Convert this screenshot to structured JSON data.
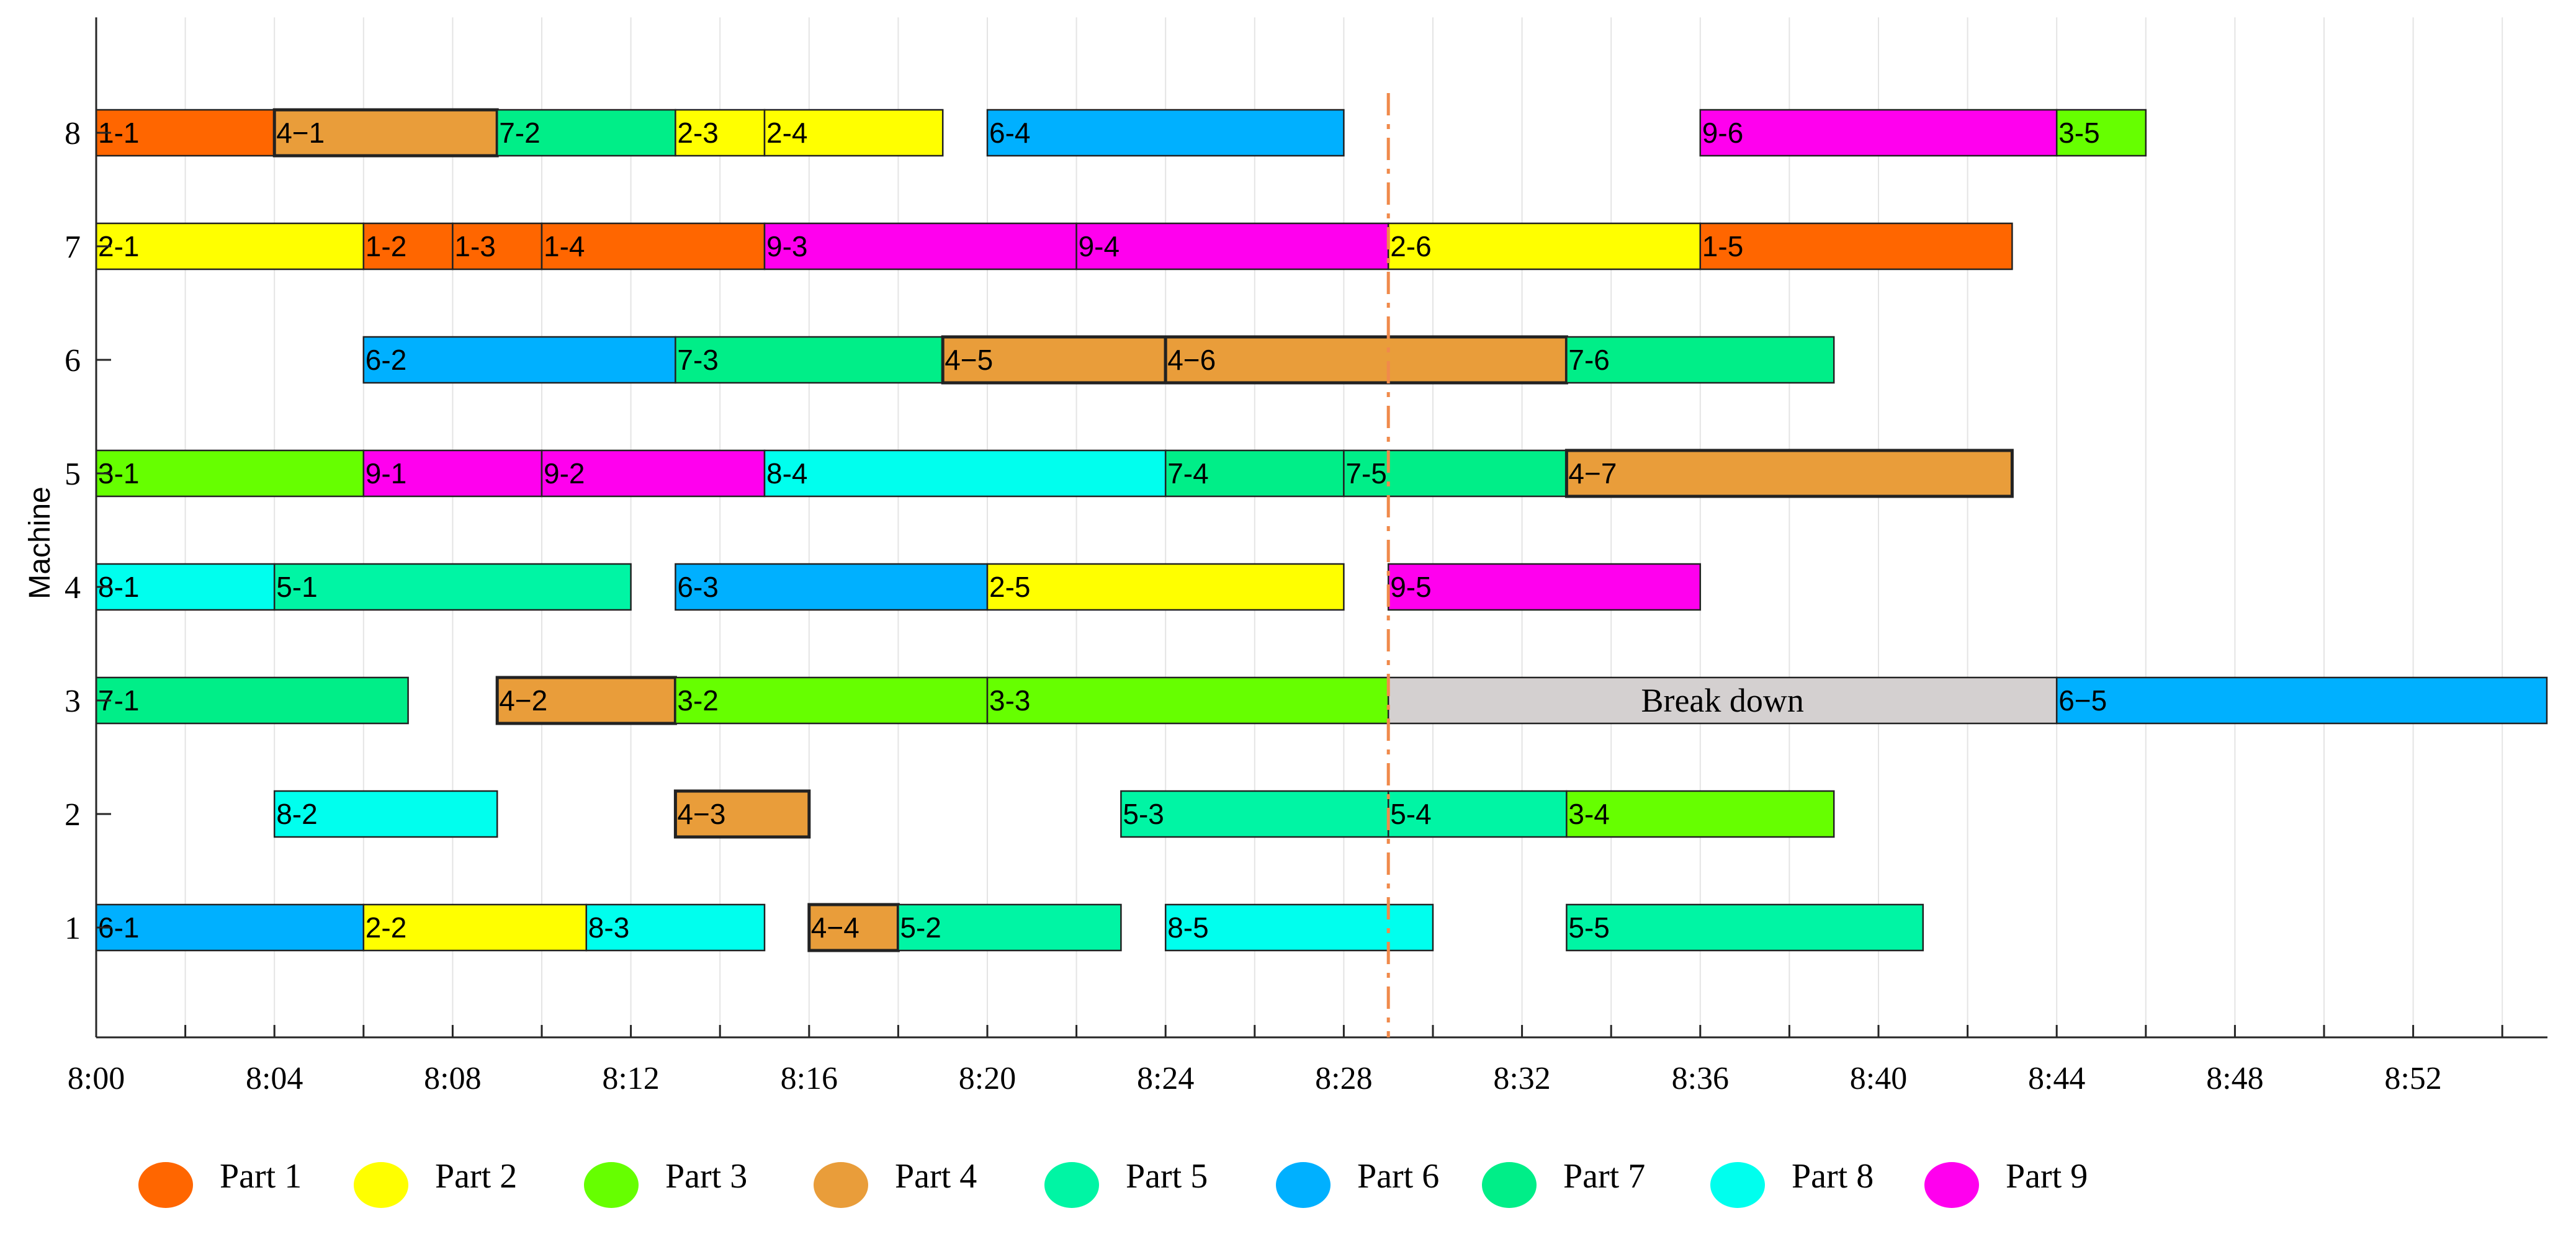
{
  "chart_data": {
    "type": "gantt",
    "ylabel": "Machine",
    "xlabel": "",
    "x_unit": "minutes after 8:00",
    "xlim": [
      0,
      55
    ],
    "ylim": [
      0,
      8.9
    ],
    "machines": [
      "1",
      "2",
      "3",
      "4",
      "5",
      "6",
      "7",
      "8"
    ],
    "x_ticks": [
      {
        "value": 0,
        "label": "8:00"
      },
      {
        "value": 4,
        "label": "8:04"
      },
      {
        "value": 8,
        "label": "8:08"
      },
      {
        "value": 12,
        "label": "8:12"
      },
      {
        "value": 16,
        "label": "8:16"
      },
      {
        "value": 20,
        "label": "8:20"
      },
      {
        "value": 24,
        "label": "8:24"
      },
      {
        "value": 28,
        "label": "8:28"
      },
      {
        "value": 32,
        "label": "8:32"
      },
      {
        "value": 36,
        "label": "8:36"
      },
      {
        "value": 40,
        "label": "8:40"
      },
      {
        "value": 44,
        "label": "8:44"
      },
      {
        "value": 48,
        "label": "8:48"
      },
      {
        "value": 52,
        "label": "8:52"
      }
    ],
    "breakdown_time": 29,
    "parts": [
      {
        "name": "Part 1",
        "color": "#ff6600"
      },
      {
        "name": "Part 2",
        "color": "#ffff00"
      },
      {
        "name": "Part 3",
        "color": "#66ff00"
      },
      {
        "name": "Part 4",
        "color": "#e99d3a"
      },
      {
        "name": "Part 5",
        "color": "#00f5a4"
      },
      {
        "name": "Part 6",
        "color": "#00b0ff"
      },
      {
        "name": "Part 7",
        "color": "#00ee88"
      },
      {
        "name": "Part 8",
        "color": "#00ffee"
      },
      {
        "name": "Part 9",
        "color": "#ff00ee"
      }
    ],
    "breakdown_color": "#d4d0d0",
    "operations": [
      {
        "machine": 8,
        "label": "1-1",
        "part": 1,
        "start": 0,
        "end": 4
      },
      {
        "machine": 8,
        "label": "4−1",
        "part": 4,
        "start": 4,
        "end": 9
      },
      {
        "machine": 8,
        "label": "7-2",
        "part": 7,
        "start": 9,
        "end": 13
      },
      {
        "machine": 8,
        "label": "2-3",
        "part": 2,
        "start": 13,
        "end": 15
      },
      {
        "machine": 8,
        "label": "2-4",
        "part": 2,
        "start": 15,
        "end": 19
      },
      {
        "machine": 8,
        "label": "6-4",
        "part": 6,
        "start": 20,
        "end": 28
      },
      {
        "machine": 8,
        "label": "9-6",
        "part": 9,
        "start": 36,
        "end": 44
      },
      {
        "machine": 8,
        "label": "3-5",
        "part": 3,
        "start": 44,
        "end": 46
      },
      {
        "machine": 7,
        "label": "2-1",
        "part": 2,
        "start": 0,
        "end": 6
      },
      {
        "machine": 7,
        "label": "1-2",
        "part": 1,
        "start": 6,
        "end": 8
      },
      {
        "machine": 7,
        "label": "1-3",
        "part": 1,
        "start": 8,
        "end": 10
      },
      {
        "machine": 7,
        "label": "1-4",
        "part": 1,
        "start": 10,
        "end": 15
      },
      {
        "machine": 7,
        "label": "9-3",
        "part": 9,
        "start": 15,
        "end": 22
      },
      {
        "machine": 7,
        "label": "9-4",
        "part": 9,
        "start": 22,
        "end": 29
      },
      {
        "machine": 7,
        "label": "2-6",
        "part": 2,
        "start": 29,
        "end": 36
      },
      {
        "machine": 7,
        "label": "1-5",
        "part": 1,
        "start": 36,
        "end": 43
      },
      {
        "machine": 6,
        "label": "6-2",
        "part": 6,
        "start": 6,
        "end": 13
      },
      {
        "machine": 6,
        "label": "7-3",
        "part": 7,
        "start": 13,
        "end": 19
      },
      {
        "machine": 6,
        "label": "4−5",
        "part": 4,
        "start": 19,
        "end": 24
      },
      {
        "machine": 6,
        "label": "4−6",
        "part": 4,
        "start": 24,
        "end": 33
      },
      {
        "machine": 6,
        "label": "7-6",
        "part": 7,
        "start": 33,
        "end": 39
      },
      {
        "machine": 5,
        "label": "3-1",
        "part": 3,
        "start": 0,
        "end": 6
      },
      {
        "machine": 5,
        "label": "9-1",
        "part": 9,
        "start": 6,
        "end": 10
      },
      {
        "machine": 5,
        "label": "9-2",
        "part": 9,
        "start": 10,
        "end": 15
      },
      {
        "machine": 5,
        "label": "8-4",
        "part": 8,
        "start": 15,
        "end": 24
      },
      {
        "machine": 5,
        "label": "7-4",
        "part": 7,
        "start": 24,
        "end": 28
      },
      {
        "machine": 5,
        "label": "7-5",
        "part": 7,
        "start": 28,
        "end": 33
      },
      {
        "machine": 5,
        "label": "4−7",
        "part": 4,
        "start": 33,
        "end": 43
      },
      {
        "machine": 4,
        "label": "8-1",
        "part": 8,
        "start": 0,
        "end": 4
      },
      {
        "machine": 4,
        "label": "5-1",
        "part": 5,
        "start": 4,
        "end": 12
      },
      {
        "machine": 4,
        "label": "6-3",
        "part": 6,
        "start": 13,
        "end": 20
      },
      {
        "machine": 4,
        "label": "2-5",
        "part": 2,
        "start": 20,
        "end": 28
      },
      {
        "machine": 4,
        "label": "9-5",
        "part": 9,
        "start": 29,
        "end": 36
      },
      {
        "machine": 3,
        "label": "7-1",
        "part": 7,
        "start": 0,
        "end": 7
      },
      {
        "machine": 3,
        "label": "4−2",
        "part": 4,
        "start": 9,
        "end": 13
      },
      {
        "machine": 3,
        "label": "3-2",
        "part": 3,
        "start": 13,
        "end": 20
      },
      {
        "machine": 3,
        "label": "3-3",
        "part": 3,
        "start": 20,
        "end": 29
      },
      {
        "machine": 3,
        "label": "Break down",
        "part": 0,
        "start": 29,
        "end": 44,
        "breakdown": true
      },
      {
        "machine": 3,
        "label": "6−5",
        "part": 6,
        "start": 44,
        "end": 55
      },
      {
        "machine": 2,
        "label": "8-2",
        "part": 8,
        "start": 4,
        "end": 9
      },
      {
        "machine": 2,
        "label": "4−3",
        "part": 4,
        "start": 13,
        "end": 16
      },
      {
        "machine": 2,
        "label": "5-3",
        "part": 5,
        "start": 23,
        "end": 29
      },
      {
        "machine": 2,
        "label": "5-4",
        "part": 5,
        "start": 29,
        "end": 33
      },
      {
        "machine": 2,
        "label": "3-4",
        "part": 3,
        "start": 33,
        "end": 39
      },
      {
        "machine": 1,
        "label": "6-1",
        "part": 6,
        "start": 0,
        "end": 6
      },
      {
        "machine": 1,
        "label": "2-2",
        "part": 2,
        "start": 6,
        "end": 11
      },
      {
        "machine": 1,
        "label": "8-3",
        "part": 8,
        "start": 11,
        "end": 15
      },
      {
        "machine": 1,
        "label": "4−4",
        "part": 4,
        "start": 16,
        "end": 18
      },
      {
        "machine": 1,
        "label": "5-2",
        "part": 5,
        "start": 18,
        "end": 23
      },
      {
        "machine": 1,
        "label": "8-5",
        "part": 8,
        "start": 24,
        "end": 30
      },
      {
        "machine": 1,
        "label": "5-5",
        "part": 5,
        "start": 33,
        "end": 41
      }
    ]
  }
}
